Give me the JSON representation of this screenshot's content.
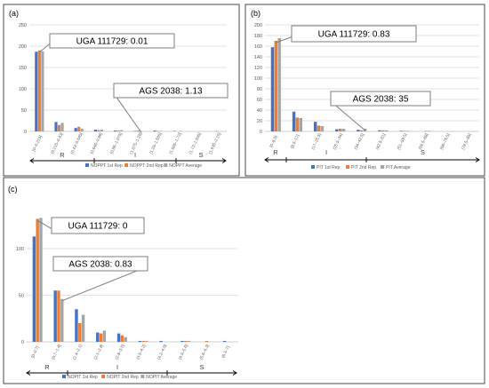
{
  "colors": {
    "series1": "#4472c4",
    "series2": "#ed7d31",
    "series3": "#a5a5a5"
  },
  "chart_data": [
    {
      "panel": "(a)",
      "type": "bar",
      "categories": [
        "[0–0.215]",
        "(0.215–0.43]",
        "(0.43–0.645]",
        "(0.645–0.86]",
        "(0.86–1.075]",
        "(1.075–1.29]",
        "(1.29–1.505]",
        "(1.505–1.72]",
        "(1.72–1.935]",
        "(1.935–2.15]"
      ],
      "series": [
        {
          "name": "NOPPT 1st Rep",
          "values": [
            187,
            22,
            8,
            4,
            2,
            1,
            2,
            1,
            0,
            0
          ]
        },
        {
          "name": "NOPPT 2nd Rep",
          "values": [
            190,
            15,
            11,
            3,
            2,
            2,
            1,
            0,
            0,
            1
          ]
        },
        {
          "name": "NOPPT Average",
          "values": [
            188,
            20,
            6,
            4,
            3,
            1,
            1,
            1,
            0,
            0
          ]
        }
      ],
      "yticks": [
        0,
        50,
        100,
        150,
        200,
        250
      ],
      "ylim": [
        0,
        250
      ],
      "grid": true,
      "legend": "bottom",
      "class_labels": [
        "R",
        "I",
        "S"
      ],
      "annotations": [
        "UGA 111729: 0.01",
        "AGS 2038: 1.13"
      ]
    },
    {
      "panel": "(b)",
      "type": "bar",
      "categories": [
        "[0–8.5]",
        "(8.5–17]",
        "(17–25.5]",
        "(25.5–34]",
        "(34–42.5]",
        "(42.5–51]",
        "(51–59.5]",
        "(59.5–68]",
        "(68–76.5]",
        "(76.5–85]"
      ],
      "series": [
        {
          "name": "PIT 1st Rep",
          "values": [
            158,
            37,
            18,
            4,
            3,
            2,
            1,
            0,
            0,
            0
          ]
        },
        {
          "name": "PIT 2nd Rep",
          "values": [
            170,
            26,
            11,
            5,
            2,
            2,
            1,
            1,
            0,
            0
          ]
        },
        {
          "name": "PIT Average",
          "values": [
            175,
            25,
            10,
            5,
            5,
            2,
            1,
            1,
            0,
            0
          ]
        }
      ],
      "yticks": [
        0,
        20,
        40,
        60,
        80,
        100,
        120,
        140,
        160,
        180,
        200
      ],
      "ylim": [
        0,
        200
      ],
      "grid": true,
      "legend": "bottom",
      "class_labels": [
        "R",
        "I",
        "S"
      ],
      "annotations": [
        "UGA 111729: 0.83",
        "AGS 2038: 35"
      ]
    },
    {
      "panel": "(c)",
      "type": "bar",
      "categories": [
        "[0–0.7]",
        "(0.7–1.4]",
        "(1.4–2.1]",
        "(2.1–2.8]",
        "(2.8–3.5]",
        "(3.5–4.2]",
        "(4.2–4.9]",
        "(4.9–5.6]",
        "(5.6–6.3]",
        "(6.3–7]"
      ],
      "series": [
        {
          "name": "NOPIT 1st Rep",
          "values": [
            113,
            55,
            35,
            10,
            9,
            1,
            1,
            1,
            0,
            1
          ]
        },
        {
          "name": "NOPIT 2nd Rep",
          "values": [
            132,
            55,
            20,
            9,
            7,
            1,
            0,
            1,
            1,
            0
          ]
        },
        {
          "name": "NOPIT Average",
          "values": [
            133,
            46,
            29,
            12,
            5,
            1,
            0,
            1,
            0,
            0
          ]
        }
      ],
      "yticks": [
        0,
        50,
        100
      ],
      "ylim": [
        0,
        140
      ],
      "grid": true,
      "legend": "bottom",
      "class_labels": [
        "R",
        "I",
        "S"
      ],
      "annotations": [
        "UGA 111729: 0",
        "AGS 2038: 0.83"
      ]
    }
  ]
}
